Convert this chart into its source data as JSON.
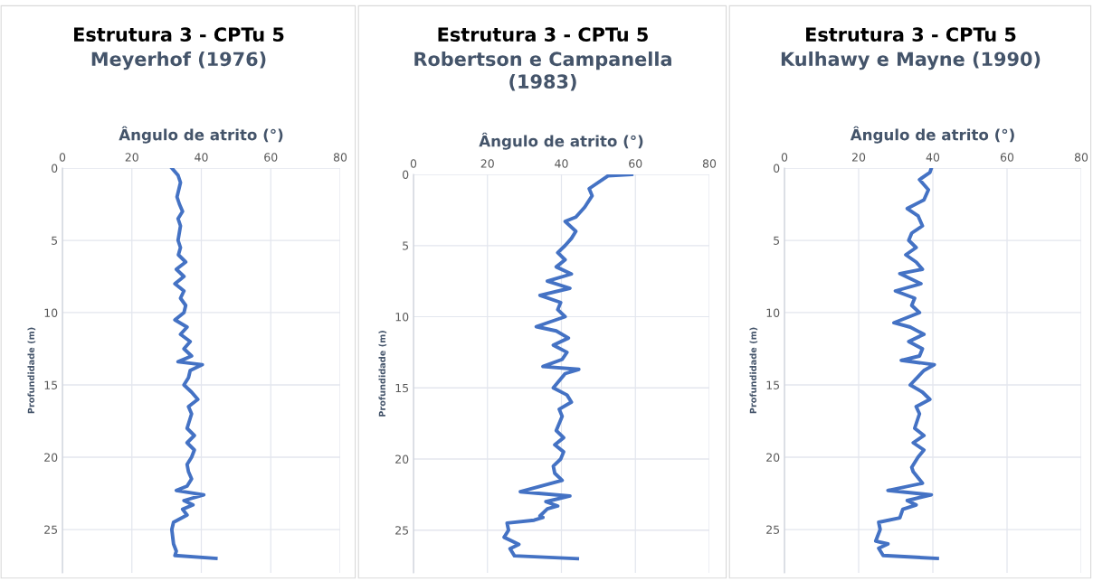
{
  "chart_data": [
    {
      "type": "line",
      "title": "Estrutura 3 - CPTu 5",
      "subtitle": "Meyerhof (1976)",
      "xlabel": "Ângulo de atrito (°)",
      "ylabel": "Profundidade (m)",
      "xlim": [
        0,
        80
      ],
      "xticks": [
        0,
        20,
        40,
        60,
        80
      ],
      "ylim": [
        28,
        0
      ],
      "yticks": [
        0,
        5,
        10,
        15,
        20,
        25
      ],
      "grid": true,
      "legend": false,
      "marker": "none",
      "line_style": "solid",
      "series": [
        {
          "color": "#4472c4",
          "x": [
            31.5,
            33.3,
            34,
            33,
            33.7,
            34.6,
            33.3,
            34,
            33.3,
            34,
            33.4,
            35.5,
            32.8,
            35,
            32.4,
            35,
            34,
            35.5,
            35,
            32.4,
            35.9,
            34,
            36.8,
            35,
            37.2,
            33.3,
            40.3,
            36.8,
            36.3,
            35,
            37.2,
            39,
            36.3,
            37.2,
            35.9,
            38,
            35.9,
            38,
            37.2,
            35.9,
            36.3,
            37.2,
            35.9,
            32.8,
            40.7,
            35,
            37.6,
            34.6,
            35.9,
            32,
            31.5,
            32,
            32.8,
            32.4,
            44.2
          ],
          "values": [
            0,
            0.5,
            1,
            2,
            2.5,
            3,
            3.5,
            4,
            5,
            5.5,
            6,
            6.5,
            7,
            7.5,
            8,
            8.5,
            9,
            9.5,
            10,
            10.5,
            11,
            11.5,
            12,
            12.5,
            13,
            13.4,
            13.6,
            14,
            14.5,
            15,
            15.5,
            16,
            16.5,
            17,
            18,
            18.5,
            19,
            19.5,
            20,
            20.5,
            21,
            21.5,
            22,
            22.3,
            22.6,
            23,
            23.3,
            23.6,
            24,
            24.5,
            25,
            26,
            26.5,
            26.8,
            27
          ]
        }
      ]
    },
    {
      "type": "line",
      "title": "Estrutura 3 - CPTu 5",
      "subtitle": "Robertson e Campanella\n(1983)",
      "xlabel": "Ângulo de atrito (°)",
      "ylabel": "Profundidade (m)",
      "xlim": [
        0,
        80
      ],
      "xticks": [
        0,
        20,
        40,
        60,
        80
      ],
      "ylim": [
        28,
        0
      ],
      "yticks": [
        0,
        5,
        10,
        15,
        20,
        25
      ],
      "grid": true,
      "legend": false,
      "marker": "none",
      "line_style": "solid",
      "series": [
        {
          "color": "#4472c4",
          "x": [
            59,
            52.6,
            47.5,
            48.3,
            46.3,
            43.9,
            41,
            43.9,
            42.7,
            41,
            39,
            41,
            38.6,
            42.7,
            36.2,
            42.3,
            34.2,
            39.8,
            39,
            41,
            33.2,
            38.6,
            41.9,
            37.8,
            41.5,
            40.2,
            35,
            44.7,
            41,
            37.8,
            41.5,
            42.7,
            39.4,
            40.2,
            38.6,
            40.6,
            38.2,
            40.6,
            39.8,
            37.8,
            38.2,
            40.2,
            28.9,
            42.3,
            35.8,
            39,
            36.2,
            34.2,
            35,
            32.6,
            25.3,
            25.7,
            24.5,
            28.5,
            26.1,
            27.3,
            44.3
          ],
          "values": [
            0,
            0.1,
            1,
            1.5,
            2.3,
            3,
            3.3,
            4,
            4.5,
            5,
            5.5,
            6,
            6.5,
            7,
            7.5,
            8,
            8.5,
            9,
            9.5,
            10,
            10.7,
            11,
            11.5,
            12,
            12.5,
            13,
            13.5,
            13.7,
            14,
            15,
            15.5,
            16,
            16.5,
            17,
            18,
            18.5,
            19,
            19.5,
            20,
            20.5,
            21,
            21.5,
            22.3,
            22.6,
            23,
            23.3,
            23.5,
            24,
            24.1,
            24.3,
            24.5,
            25,
            25.5,
            26,
            26.3,
            26.8,
            27
          ]
        }
      ]
    },
    {
      "type": "line",
      "title": "Estrutura 3 - CPTu 5",
      "subtitle": "Kulhawy e Mayne (1990)",
      "xlabel": "Ângulo de atrito (°)",
      "ylabel": "Profundidade (m)",
      "xlim": [
        0,
        80
      ],
      "xticks": [
        0,
        20,
        40,
        60,
        80
      ],
      "ylim": [
        28,
        0
      ],
      "yticks": [
        0,
        5,
        10,
        15,
        20,
        25
      ],
      "grid": true,
      "legend": false,
      "marker": "none",
      "line_style": "solid",
      "series": [
        {
          "color": "#4472c4",
          "x": [
            39.6,
            39.2,
            36.4,
            38.8,
            37.6,
            33.1,
            36,
            37.2,
            34.3,
            33.5,
            35.5,
            32.7,
            35.5,
            37.2,
            31.1,
            36.8,
            29.9,
            35.1,
            34.3,
            36.4,
            29.5,
            33.9,
            37.6,
            33.5,
            37.2,
            36.4,
            31.5,
            40.4,
            37.6,
            33.9,
            37.2,
            39.2,
            35.5,
            36.4,
            35.1,
            37.6,
            34.7,
            37.6,
            36,
            34.3,
            34.7,
            37.2,
            27.9,
            39.6,
            33.1,
            35.5,
            31.9,
            31.1,
            25.4,
            25.8,
            24.6,
            27.9,
            25.4,
            26.6,
            41.2
          ],
          "values": [
            0,
            0.3,
            0.8,
            1.5,
            2.2,
            2.8,
            3.3,
            4,
            4.5,
            5,
            5.5,
            6,
            6.5,
            7,
            7.3,
            8,
            8.5,
            9,
            9.5,
            10,
            10.7,
            11,
            11.5,
            12,
            12.5,
            13,
            13.3,
            13.6,
            14,
            15,
            15.5,
            16,
            16.5,
            17,
            18,
            18.5,
            19,
            19.5,
            20,
            20.7,
            21,
            21.8,
            22.3,
            22.6,
            23,
            23.3,
            23.6,
            24.2,
            24.5,
            25,
            25.8,
            26,
            26.3,
            26.8,
            27
          ]
        }
      ]
    }
  ]
}
